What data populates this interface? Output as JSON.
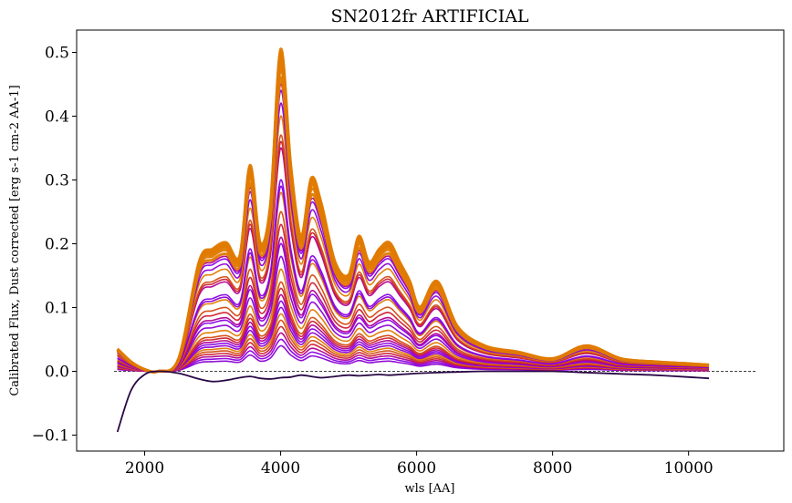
{
  "chart_data": {
    "type": "line",
    "title": "SN2012fr ARTIFICIAL",
    "xlabel": "wls [AA]",
    "ylabel": "Calibrated Flux, Dust corrected [erg s-1 cm-2 AA-1]",
    "xlim": [
      1000,
      11400
    ],
    "ylim": [
      -0.125,
      0.535
    ],
    "x_ticks": [
      2000,
      4000,
      6000,
      8000,
      10000
    ],
    "x_tick_labels": [
      "2000",
      "4000",
      "6000",
      "8000",
      "10000"
    ],
    "y_ticks": [
      -0.1,
      0.0,
      0.1,
      0.2,
      0.3,
      0.4,
      0.5
    ],
    "y_tick_labels": [
      "−0.1",
      "0.0",
      "0.1",
      "0.2",
      "0.3",
      "0.4",
      "0.5"
    ],
    "grid": false,
    "legend": "none",
    "colormap": [
      "#2a0845",
      "#8b00d4",
      "#8a00e6",
      "#b00090",
      "#cc2030",
      "#d44a10",
      "#e07a00"
    ],
    "reference_line": {
      "x": [
        1550,
        11000
      ],
      "y": 0.0,
      "style": "dashed",
      "color": "#000000"
    },
    "wavelength_grid": [
      1600,
      1800,
      2000,
      2200,
      2500,
      2800,
      3000,
      3200,
      3400,
      3550,
      3700,
      3850,
      4000,
      4150,
      4300,
      4450,
      4600,
      4800,
      5000,
      5150,
      5300,
      5450,
      5600,
      5750,
      5900,
      6050,
      6300,
      6600,
      7000,
      7500,
      8000,
      8500,
      9000,
      9500,
      10000,
      10300
    ],
    "template_shape": [
      0.035,
      0.015,
      0.003,
      0.0,
      0.02,
      0.17,
      0.19,
      0.2,
      0.18,
      0.32,
      0.2,
      0.26,
      0.5,
      0.32,
      0.21,
      0.3,
      0.26,
      0.17,
      0.15,
      0.21,
      0.17,
      0.19,
      0.2,
      0.17,
      0.14,
      0.1,
      0.14,
      0.07,
      0.04,
      0.03,
      0.02,
      0.04,
      0.02,
      0.015,
      0.012,
      0.01
    ],
    "series": [
      {
        "color": "#2a0845",
        "values": [
          -0.095,
          -0.03,
          -0.005,
          0.0,
          -0.003,
          -0.012,
          -0.016,
          -0.014,
          -0.01,
          -0.008,
          -0.011,
          -0.012,
          -0.01,
          -0.009,
          -0.006,
          -0.008,
          -0.01,
          -0.008,
          -0.006,
          -0.007,
          -0.006,
          -0.005,
          -0.006,
          -0.005,
          -0.004,
          -0.003,
          -0.002,
          -0.001,
          0.0,
          0.0,
          0.0,
          -0.002,
          -0.004,
          -0.006,
          -0.009,
          -0.011
        ]
      }
    ],
    "scaled_series_peaks": [
      0.505,
      0.5,
      0.495,
      0.49,
      0.485,
      0.475,
      0.46,
      0.45,
      0.44,
      0.42,
      0.4,
      0.37,
      0.36,
      0.35,
      0.3,
      0.29,
      0.28,
      0.25,
      0.23,
      0.21,
      0.2,
      0.18,
      0.16,
      0.14,
      0.13,
      0.12,
      0.11,
      0.1,
      0.09,
      0.08,
      0.07,
      0.06,
      0.05,
      0.04
    ]
  }
}
